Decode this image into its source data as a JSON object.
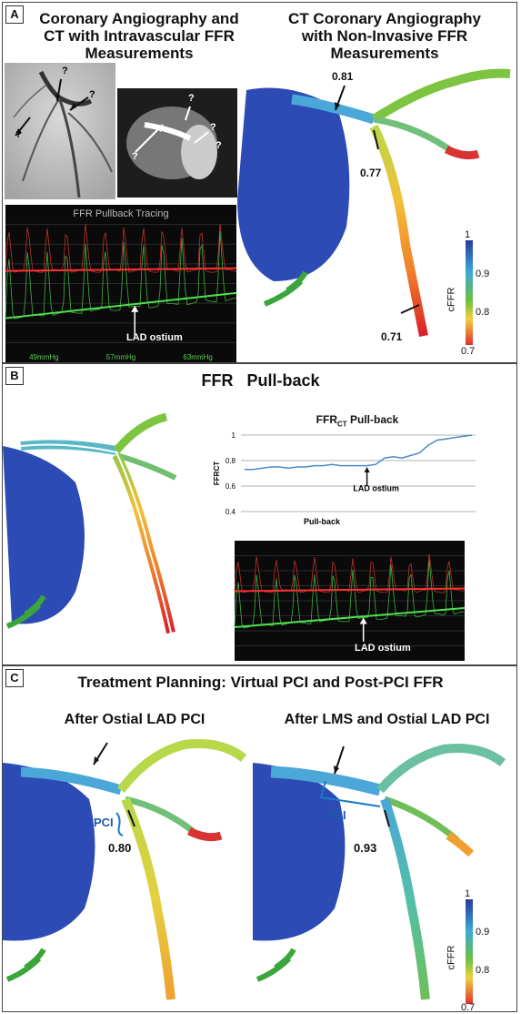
{
  "panel_a": {
    "label": "A",
    "left_title": "Coronary Angiography and\nCT with Intravascular FFR\nMeasurements",
    "right_title": "CT Coronary Angiography\nwith Non-Invasive FFR\nMeasurements",
    "question_mark": "?",
    "tracing_title": "FFR Pullback Tracing",
    "tracing_marker": "LAD ostium",
    "tracing_footer": [
      "49mmHg",
      "57mmHg",
      "63mmHg"
    ],
    "values": [
      "0.81",
      "0.77",
      "0.71"
    ],
    "colorbar": {
      "max": "1",
      "mid": "0.9",
      "low": "0.8",
      "min": "0.7",
      "label": "cFFR"
    }
  },
  "panel_b": {
    "label": "B",
    "title": "FFR   Pull-back",
    "chart_title_main": "FFR",
    "chart_title_sub": "CT",
    "chart_title_rest": " Pull-back",
    "tracing_marker": "LAD ostium",
    "chart_data": {
      "type": "line",
      "title": "FFRCT Pull-back",
      "xlabel": "Pull-back",
      "ylabel": "FFRCT",
      "ylim": [
        0.4,
        1
      ],
      "yticks": [
        "1",
        "0.8",
        "0.6",
        "0.4"
      ],
      "annotation": "LAD ostium",
      "series": [
        {
          "values": [
            0.73,
            0.73,
            0.74,
            0.75,
            0.75,
            0.74,
            0.75,
            0.75,
            0.76,
            0.76,
            0.77,
            0.76,
            0.76,
            0.76,
            0.76,
            0.77,
            0.82,
            0.83,
            0.82,
            0.84,
            0.86,
            0.92,
            0.96,
            0.97,
            0.98,
            0.99,
            1.0
          ]
        }
      ],
      "grid": true,
      "color": "#4a8ac8"
    }
  },
  "panel_c": {
    "label": "C",
    "title": "Treatment Planning: Virtual PCI and Post-PCI FFR",
    "left_title": "After Ostial LAD PCI",
    "right_title": "After LMS and Ostial LAD PCI",
    "pci": "PCI",
    "left_value": "0.80",
    "right_value": "0.93",
    "colorbar": {
      "max": "1",
      "mid": "0.9",
      "low": "0.8",
      "min": "0.7",
      "label": "cFFR"
    }
  }
}
